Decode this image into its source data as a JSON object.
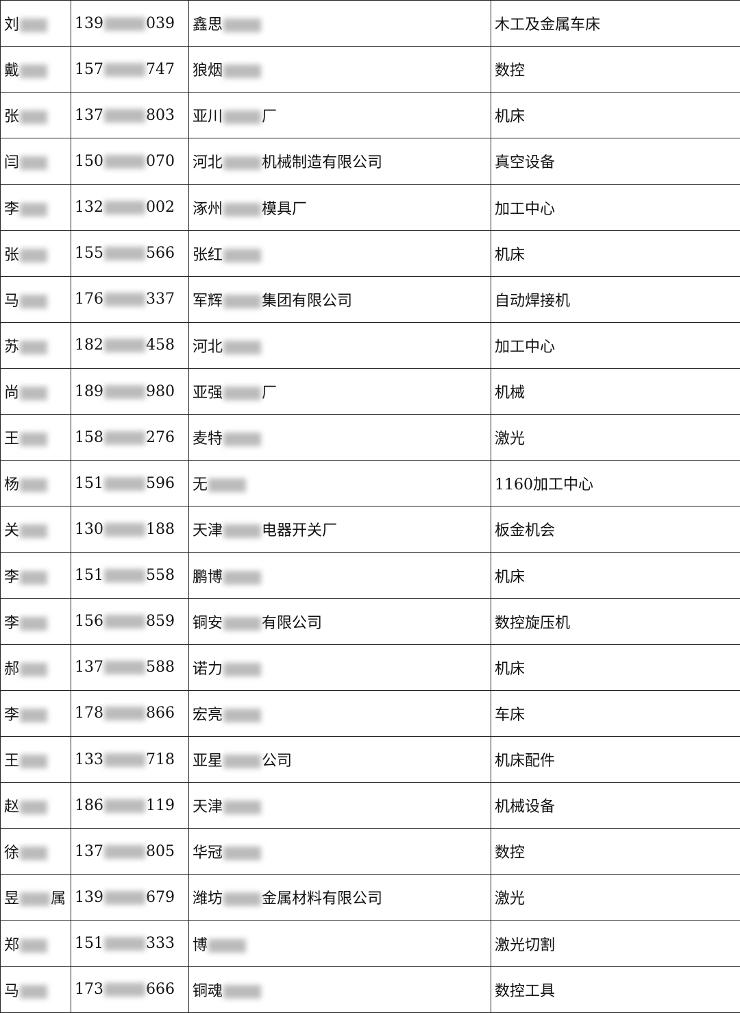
{
  "table": {
    "rows": [
      {
        "name": [
          "刘"
        ],
        "phone": [
          "139",
          "039"
        ],
        "company": [
          "鑫思"
        ],
        "product": "木工及金属车床"
      },
      {
        "name": [
          "戴"
        ],
        "phone": [
          "157",
          "747"
        ],
        "company": [
          "狼烟"
        ],
        "product": "数控"
      },
      {
        "name": [
          "张"
        ],
        "phone": [
          "137",
          "803"
        ],
        "company": [
          "亚川",
          "厂"
        ],
        "product": "机床"
      },
      {
        "name": [
          "闫"
        ],
        "phone": [
          "150",
          "070"
        ],
        "company": [
          "河北",
          "机械制造有限公司"
        ],
        "product": "真空设备"
      },
      {
        "name": [
          "李"
        ],
        "phone": [
          "132",
          "002"
        ],
        "company": [
          "涿州",
          "模具厂"
        ],
        "product": "加工中心"
      },
      {
        "name": [
          "张"
        ],
        "phone": [
          "155",
          "566"
        ],
        "company": [
          "张红"
        ],
        "product": "机床"
      },
      {
        "name": [
          "马"
        ],
        "phone": [
          "176",
          "337"
        ],
        "company": [
          "军辉",
          "集团有限公司"
        ],
        "product": "自动焊接机"
      },
      {
        "name": [
          "苏"
        ],
        "phone": [
          "182",
          "458"
        ],
        "company": [
          "河北"
        ],
        "product": "加工中心"
      },
      {
        "name": [
          "尚"
        ],
        "phone": [
          "189",
          "980"
        ],
        "company": [
          "亚强",
          "厂"
        ],
        "product": "机械"
      },
      {
        "name": [
          "王"
        ],
        "phone": [
          "158",
          "276"
        ],
        "company": [
          "麦特"
        ],
        "product": "激光"
      },
      {
        "name": [
          "杨"
        ],
        "phone": [
          "151",
          "596"
        ],
        "company": [
          "无"
        ],
        "product": "1160加工中心"
      },
      {
        "name": [
          "关"
        ],
        "phone": [
          "130",
          "188"
        ],
        "company": [
          "天津",
          "电器开关厂"
        ],
        "product": "板金机会"
      },
      {
        "name": [
          "李"
        ],
        "phone": [
          "151",
          "558"
        ],
        "company": [
          "鹏博"
        ],
        "product": "机床"
      },
      {
        "name": [
          "李"
        ],
        "phone": [
          "156",
          "859"
        ],
        "company": [
          "铜安",
          "有限公司"
        ],
        "product": "数控旋压机"
      },
      {
        "name": [
          "郝"
        ],
        "phone": [
          "137",
          "588"
        ],
        "company": [
          "诺力"
        ],
        "product": "机床"
      },
      {
        "name": [
          "李"
        ],
        "phone": [
          "178",
          "866"
        ],
        "company": [
          "宏亮"
        ],
        "product": "车床"
      },
      {
        "name": [
          "王"
        ],
        "phone": [
          "133",
          "718"
        ],
        "company": [
          "亚星",
          "公司"
        ],
        "product": "机床配件"
      },
      {
        "name": [
          "赵"
        ],
        "phone": [
          "186",
          "119"
        ],
        "company": [
          "天津"
        ],
        "product": "机械设备"
      },
      {
        "name": [
          "徐"
        ],
        "phone": [
          "137",
          "805"
        ],
        "company": [
          "华冠"
        ],
        "product": "数控"
      },
      {
        "name": [
          "昱",
          "属"
        ],
        "phone": [
          "139",
          "679"
        ],
        "company": [
          "潍坊",
          "金属材料有限公司"
        ],
        "product": "激光"
      },
      {
        "name": [
          "郑"
        ],
        "phone": [
          "151",
          "333"
        ],
        "company": [
          "博"
        ],
        "product": "激光切割"
      },
      {
        "name": [
          "马"
        ],
        "phone": [
          "173",
          "666"
        ],
        "company": [
          "铜魂"
        ],
        "product": "数控工具"
      }
    ]
  }
}
